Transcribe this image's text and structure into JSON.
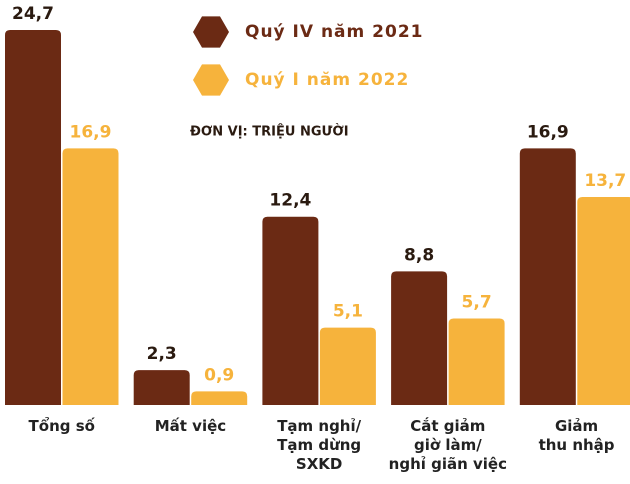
{
  "chart_data": {
    "type": "bar",
    "subtitle": "ĐƠN VỊ: TRIỆU NGƯỜI",
    "categories": [
      "Tổng số",
      "Mất việc",
      "Tạm nghỉ/\nTạm dừng\nSXKD",
      "Cắt giảm\ngiờ làm/\nnghỉ giãn việc",
      "Giảm\nthu nhập"
    ],
    "series": [
      {
        "name": "Quý IV năm 2021",
        "color": "#6b2a14",
        "values": [
          24.7,
          2.3,
          12.4,
          8.8,
          16.9
        ],
        "value_labels": [
          "24,7",
          "2,3",
          "12,4",
          "8,8",
          "16,9"
        ]
      },
      {
        "name": "Quý I năm 2022",
        "color": "#f6b33c",
        "values": [
          16.9,
          0.9,
          5.1,
          5.7,
          13.7
        ],
        "value_labels": [
          "16,9",
          "0,9",
          "5,1",
          "5,7",
          "13,7"
        ]
      }
    ]
  }
}
